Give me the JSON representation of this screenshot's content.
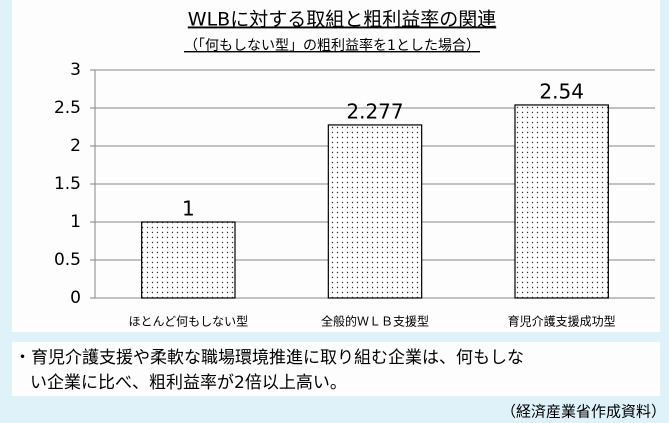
{
  "chart_data": {
    "type": "bar",
    "title": "WLBに対する取組と粗利益率の関連",
    "subtitle": "（「何もしない型」の粗利益率を1とした場合）",
    "categories": [
      "ほとんど何もしない型",
      "全般的ＷＬＢ支援型",
      "育児介護支援成功型"
    ],
    "values": [
      1,
      2.277,
      2.54
    ],
    "color": "#ffffff",
    "ylim": [
      0,
      3
    ],
    "yticks": [
      0,
      0.5,
      1,
      1.5,
      2,
      2.5,
      3
    ],
    "grid": true
  },
  "note": {
    "lines": [
      "・育児介護支援や柔軟な職場環境推進に取り組む企業は、何もしな",
      "い企業に比べ、粗利益率が2倍以上高い。"
    ]
  },
  "source": "（経済産業省作成資料）"
}
